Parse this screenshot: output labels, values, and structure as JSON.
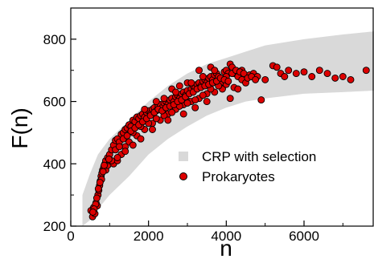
{
  "chart_data": {
    "type": "scatter",
    "title": "",
    "xlabel": "n",
    "ylabel": "F(n)",
    "xlim": [
      0,
      7800
    ],
    "ylim": [
      200,
      900
    ],
    "x_ticks": [
      0,
      2000,
      4000,
      6000
    ],
    "x_tick_labels": [
      "0",
      "2000",
      "4000",
      "6000"
    ],
    "y_ticks": [
      200,
      400,
      600,
      800
    ],
    "y_tick_labels": [
      "200",
      "400",
      "600",
      "800"
    ],
    "grid": false,
    "legend_position": "bottom-right",
    "band": {
      "name": "CRP with selection",
      "color": "#d9d9d9",
      "x": [
        300,
        500,
        700,
        1000,
        1500,
        2000,
        2500,
        3000,
        3500,
        4000,
        4500,
        5000,
        6000,
        7000,
        7800
      ],
      "upper": [
        300,
        370,
        430,
        480,
        540,
        600,
        650,
        690,
        720,
        740,
        760,
        780,
        800,
        815,
        825
      ],
      "lower": [
        200,
        220,
        255,
        300,
        360,
        430,
        480,
        520,
        555,
        580,
        600,
        610,
        625,
        630,
        635
      ]
    },
    "series": [
      {
        "name": "Prokaryotes",
        "color": "#dd0000",
        "points": [
          [
            520,
            250
          ],
          [
            560,
            230
          ],
          [
            590,
            260
          ],
          [
            620,
            240
          ],
          [
            650,
            275
          ],
          [
            680,
            265
          ],
          [
            700,
            300
          ],
          [
            720,
            315
          ],
          [
            740,
            330
          ],
          [
            760,
            345
          ],
          [
            780,
            360
          ],
          [
            800,
            370
          ],
          [
            820,
            380
          ],
          [
            850,
            390
          ],
          [
            880,
            400
          ],
          [
            900,
            410
          ],
          [
            950,
            420
          ],
          [
            1000,
            430
          ],
          [
            1050,
            445
          ],
          [
            1100,
            460
          ],
          [
            1150,
            475
          ],
          [
            1200,
            480
          ],
          [
            1250,
            470
          ],
          [
            1300,
            495
          ],
          [
            1350,
            500
          ],
          [
            1400,
            510
          ],
          [
            1450,
            515
          ],
          [
            1500,
            525
          ],
          [
            1550,
            520
          ],
          [
            1600,
            540
          ],
          [
            1650,
            535
          ],
          [
            1700,
            550
          ],
          [
            1750,
            545
          ],
          [
            1800,
            555
          ],
          [
            1850,
            560
          ],
          [
            1900,
            550
          ],
          [
            1950,
            565
          ],
          [
            2000,
            570
          ],
          [
            2050,
            560
          ],
          [
            2100,
            575
          ],
          [
            2150,
            580
          ],
          [
            2200,
            570
          ],
          [
            2250,
            585
          ],
          [
            2300,
            590
          ],
          [
            2350,
            580
          ],
          [
            2400,
            595
          ],
          [
            2450,
            600
          ],
          [
            2500,
            590
          ],
          [
            2550,
            605
          ],
          [
            2600,
            610
          ],
          [
            2650,
            600
          ],
          [
            2700,
            615
          ],
          [
            2750,
            620
          ],
          [
            2800,
            610
          ],
          [
            2850,
            625
          ],
          [
            2900,
            630
          ],
          [
            2950,
            620
          ],
          [
            3000,
            635
          ],
          [
            3050,
            600
          ],
          [
            3100,
            640
          ],
          [
            3150,
            650
          ],
          [
            3200,
            645
          ],
          [
            3250,
            655
          ],
          [
            3300,
            660
          ],
          [
            3350,
            650
          ],
          [
            3400,
            665
          ],
          [
            3450,
            670
          ],
          [
            3500,
            660
          ],
          [
            3550,
            675
          ],
          [
            3600,
            680
          ],
          [
            3650,
            670
          ],
          [
            3700,
            685
          ],
          [
            3750,
            690
          ],
          [
            3800,
            680
          ],
          [
            3850,
            660
          ],
          [
            3900,
            640
          ],
          [
            3950,
            695
          ],
          [
            4000,
            700
          ],
          [
            4050,
            690
          ],
          [
            4100,
            720
          ],
          [
            4150,
            710
          ],
          [
            4200,
            690
          ],
          [
            4300,
            680
          ],
          [
            4400,
            670
          ],
          [
            4500,
            660
          ],
          [
            4600,
            685
          ],
          [
            4700,
            690
          ],
          [
            4800,
            680
          ],
          [
            4900,
            605
          ],
          [
            5000,
            670
          ],
          [
            5200,
            715
          ],
          [
            5300,
            710
          ],
          [
            5400,
            690
          ],
          [
            5500,
            680
          ],
          [
            5600,
            700
          ],
          [
            5800,
            690
          ],
          [
            6000,
            695
          ],
          [
            6200,
            680
          ],
          [
            6400,
            700
          ],
          [
            6600,
            690
          ],
          [
            6800,
            675
          ],
          [
            7000,
            680
          ],
          [
            7200,
            670
          ],
          [
            7600,
            700
          ],
          [
            1300,
            430
          ],
          [
            1500,
            470
          ],
          [
            1700,
            490
          ],
          [
            1900,
            510
          ],
          [
            2100,
            530
          ],
          [
            2300,
            540
          ],
          [
            2500,
            560
          ],
          [
            2700,
            575
          ],
          [
            2900,
            590
          ],
          [
            3100,
            600
          ],
          [
            3300,
            610
          ],
          [
            3500,
            625
          ],
          [
            3700,
            630
          ],
          [
            1100,
            400
          ],
          [
            1200,
            410
          ],
          [
            1400,
            455
          ],
          [
            1600,
            500
          ],
          [
            1800,
            520
          ],
          [
            2000,
            530
          ],
          [
            2200,
            545
          ],
          [
            2400,
            555
          ],
          [
            2600,
            565
          ],
          [
            2800,
            585
          ],
          [
            3000,
            595
          ],
          [
            3200,
            605
          ],
          [
            3400,
            620
          ],
          [
            3600,
            640
          ],
          [
            3800,
            650
          ],
          [
            4000,
            655
          ],
          [
            4200,
            645
          ],
          [
            2600,
            640
          ],
          [
            2800,
            650
          ],
          [
            3000,
            660
          ],
          [
            3300,
            700
          ],
          [
            3600,
            710
          ],
          [
            4000,
            680
          ],
          [
            4400,
            700
          ],
          [
            900,
            380
          ],
          [
            950,
            395
          ],
          [
            1000,
            410
          ],
          [
            1150,
            445
          ],
          [
            1250,
            455
          ],
          [
            1350,
            480
          ],
          [
            1450,
            490
          ],
          [
            1550,
            505
          ],
          [
            1650,
            515
          ],
          [
            1750,
            525
          ],
          [
            1850,
            535
          ],
          [
            1950,
            545
          ],
          [
            2050,
            555
          ],
          [
            2150,
            565
          ],
          [
            2250,
            575
          ],
          [
            2350,
            570
          ],
          [
            2450,
            580
          ],
          [
            2550,
            585
          ],
          [
            2650,
            590
          ],
          [
            2750,
            600
          ],
          [
            2850,
            605
          ],
          [
            2950,
            615
          ],
          [
            3050,
            625
          ],
          [
            3150,
            630
          ],
          [
            3250,
            640
          ],
          [
            3350,
            645
          ],
          [
            3450,
            650
          ],
          [
            3550,
            655
          ],
          [
            3650,
            660
          ],
          [
            3750,
            665
          ],
          [
            3850,
            675
          ],
          [
            3950,
            670
          ],
          [
            4050,
            665
          ],
          [
            4150,
            690
          ],
          [
            4250,
            700
          ],
          [
            4350,
            695
          ],
          [
            4450,
            690
          ],
          [
            4550,
            675
          ],
          [
            4650,
            680
          ],
          [
            4750,
            670
          ],
          [
            1900,
            575
          ],
          [
            2200,
            600
          ],
          [
            2400,
            610
          ],
          [
            2700,
            630
          ],
          [
            3100,
            660
          ],
          [
            3400,
            680
          ],
          [
            3700,
            700
          ],
          [
            4100,
            610
          ],
          [
            4300,
            640
          ],
          [
            3500,
            600
          ],
          [
            3200,
            580
          ],
          [
            2900,
            560
          ],
          [
            2500,
            540
          ],
          [
            2100,
            510
          ],
          [
            1800,
            480
          ],
          [
            1600,
            460
          ],
          [
            1400,
            440
          ],
          [
            1200,
            420
          ],
          [
            1050,
            410
          ],
          [
            980,
            415
          ],
          [
            860,
            395
          ],
          [
            830,
            375
          ],
          [
            790,
            350
          ],
          [
            750,
            340
          ],
          [
            710,
            320
          ],
          [
            670,
            290
          ],
          [
            640,
            270
          ],
          [
            600,
            255
          ],
          [
            570,
            245
          ]
        ]
      }
    ],
    "legend": [
      {
        "label": "CRP with selection",
        "marker": "square",
        "color": "#d9d9d9"
      },
      {
        "label": "Prokaryotes",
        "marker": "circle",
        "color": "#dd0000"
      }
    ]
  }
}
